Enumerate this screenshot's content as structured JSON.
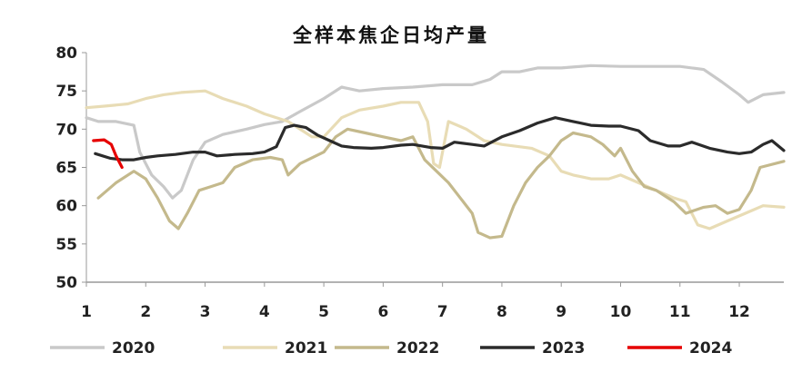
{
  "chart_data": {
    "type": "line",
    "title": "全样本焦企日均产量",
    "xlabel": "",
    "ylabel": "",
    "ylim": [
      50,
      80
    ],
    "xlim": [
      1,
      12.75
    ],
    "yticks": [
      "50",
      "55",
      "60",
      "65",
      "70",
      "75",
      "80"
    ],
    "xticks": [
      "1",
      "2",
      "3",
      "4",
      "5",
      "6",
      "7",
      "8",
      "9",
      "10",
      "11",
      "12"
    ],
    "grid": false,
    "legend_position": "bottom",
    "series": [
      {
        "name": "2020",
        "color": "#c9c9c9",
        "points": [
          [
            1.0,
            71.5
          ],
          [
            1.2,
            71.0
          ],
          [
            1.5,
            71.0
          ],
          [
            1.8,
            70.5
          ],
          [
            1.9,
            67.0
          ],
          [
            2.1,
            64.0
          ],
          [
            2.3,
            62.5
          ],
          [
            2.45,
            61.0
          ],
          [
            2.6,
            62.0
          ],
          [
            2.8,
            66.0
          ],
          [
            3.0,
            68.3
          ],
          [
            3.3,
            69.3
          ],
          [
            3.7,
            70.0
          ],
          [
            4.0,
            70.6
          ],
          [
            4.3,
            71.0
          ],
          [
            4.6,
            72.3
          ],
          [
            5.0,
            74.0
          ],
          [
            5.3,
            75.5
          ],
          [
            5.6,
            75.0
          ],
          [
            6.0,
            75.3
          ],
          [
            6.5,
            75.5
          ],
          [
            7.0,
            75.8
          ],
          [
            7.5,
            75.8
          ],
          [
            7.8,
            76.5
          ],
          [
            8.0,
            77.5
          ],
          [
            8.3,
            77.5
          ],
          [
            8.6,
            78.0
          ],
          [
            9.0,
            78.0
          ],
          [
            9.5,
            78.3
          ],
          [
            10.0,
            78.2
          ],
          [
            10.5,
            78.2
          ],
          [
            11.0,
            78.2
          ],
          [
            11.4,
            77.8
          ],
          [
            11.7,
            76.2
          ],
          [
            12.0,
            74.5
          ],
          [
            12.15,
            73.5
          ],
          [
            12.4,
            74.5
          ],
          [
            12.75,
            74.8
          ]
        ]
      },
      {
        "name": "2021",
        "color": "#e8dcb5",
        "points": [
          [
            1.0,
            72.8
          ],
          [
            1.3,
            73.0
          ],
          [
            1.7,
            73.3
          ],
          [
            2.0,
            74.0
          ],
          [
            2.3,
            74.5
          ],
          [
            2.6,
            74.8
          ],
          [
            3.0,
            75.0
          ],
          [
            3.3,
            74.0
          ],
          [
            3.7,
            73.0
          ],
          [
            4.0,
            72.0
          ],
          [
            4.4,
            71.0
          ],
          [
            4.8,
            69.0
          ],
          [
            5.0,
            69.0
          ],
          [
            5.3,
            71.5
          ],
          [
            5.6,
            72.5
          ],
          [
            6.0,
            73.0
          ],
          [
            6.3,
            73.5
          ],
          [
            6.6,
            73.5
          ],
          [
            6.75,
            71.0
          ],
          [
            6.85,
            65.5
          ],
          [
            6.95,
            65.0
          ],
          [
            7.1,
            71.0
          ],
          [
            7.4,
            70.0
          ],
          [
            7.7,
            68.5
          ],
          [
            8.0,
            68.0
          ],
          [
            8.5,
            67.5
          ],
          [
            8.8,
            66.5
          ],
          [
            9.0,
            64.5
          ],
          [
            9.2,
            64.0
          ],
          [
            9.5,
            63.5
          ],
          [
            9.8,
            63.5
          ],
          [
            10.0,
            64.0
          ],
          [
            10.3,
            63.0
          ],
          [
            10.6,
            62.0
          ],
          [
            10.9,
            61.0
          ],
          [
            11.1,
            60.5
          ],
          [
            11.3,
            57.5
          ],
          [
            11.5,
            57.0
          ],
          [
            11.8,
            58.0
          ],
          [
            12.1,
            59.0
          ],
          [
            12.4,
            60.0
          ],
          [
            12.75,
            59.8
          ]
        ]
      },
      {
        "name": "2022",
        "color": "#c4b98c",
        "points": [
          [
            1.2,
            61.0
          ],
          [
            1.5,
            63.0
          ],
          [
            1.8,
            64.5
          ],
          [
            2.0,
            63.5
          ],
          [
            2.2,
            61.0
          ],
          [
            2.4,
            58.0
          ],
          [
            2.55,
            57.0
          ],
          [
            2.7,
            59.0
          ],
          [
            2.9,
            62.0
          ],
          [
            3.1,
            62.5
          ],
          [
            3.3,
            63.0
          ],
          [
            3.5,
            65.0
          ],
          [
            3.8,
            66.0
          ],
          [
            4.1,
            66.3
          ],
          [
            4.3,
            66.0
          ],
          [
            4.4,
            64.0
          ],
          [
            4.6,
            65.5
          ],
          [
            5.0,
            67.0
          ],
          [
            5.2,
            69.0
          ],
          [
            5.4,
            70.0
          ],
          [
            5.7,
            69.5
          ],
          [
            6.0,
            69.0
          ],
          [
            6.3,
            68.5
          ],
          [
            6.5,
            69.0
          ],
          [
            6.6,
            67.5
          ],
          [
            6.7,
            66.0
          ],
          [
            6.9,
            64.5
          ],
          [
            7.1,
            63.0
          ],
          [
            7.3,
            61.0
          ],
          [
            7.5,
            59.0
          ],
          [
            7.6,
            56.5
          ],
          [
            7.8,
            55.8
          ],
          [
            8.0,
            56.0
          ],
          [
            8.2,
            60.0
          ],
          [
            8.4,
            63.0
          ],
          [
            8.6,
            65.0
          ],
          [
            8.8,
            66.5
          ],
          [
            9.0,
            68.5
          ],
          [
            9.2,
            69.5
          ],
          [
            9.5,
            69.0
          ],
          [
            9.7,
            68.0
          ],
          [
            9.9,
            66.5
          ],
          [
            10.0,
            67.5
          ],
          [
            10.2,
            64.5
          ],
          [
            10.4,
            62.5
          ],
          [
            10.6,
            62.0
          ],
          [
            10.9,
            60.5
          ],
          [
            11.1,
            59.0
          ],
          [
            11.4,
            59.8
          ],
          [
            11.6,
            60.0
          ],
          [
            11.8,
            59.0
          ],
          [
            12.0,
            59.5
          ],
          [
            12.2,
            62.0
          ],
          [
            12.35,
            65.0
          ],
          [
            12.75,
            65.8
          ]
        ]
      },
      {
        "name": "2023",
        "color": "#2b2b2b",
        "points": [
          [
            1.15,
            66.8
          ],
          [
            1.4,
            66.2
          ],
          [
            1.6,
            66.0
          ],
          [
            1.8,
            66.0
          ],
          [
            2.0,
            66.3
          ],
          [
            2.2,
            66.5
          ],
          [
            2.5,
            66.7
          ],
          [
            2.8,
            67.0
          ],
          [
            3.0,
            67.0
          ],
          [
            3.2,
            66.5
          ],
          [
            3.5,
            66.7
          ],
          [
            3.8,
            66.8
          ],
          [
            4.0,
            67.0
          ],
          [
            4.2,
            67.7
          ],
          [
            4.35,
            70.2
          ],
          [
            4.5,
            70.5
          ],
          [
            4.7,
            70.2
          ],
          [
            4.9,
            69.2
          ],
          [
            5.1,
            68.5
          ],
          [
            5.3,
            67.8
          ],
          [
            5.5,
            67.6
          ],
          [
            5.8,
            67.5
          ],
          [
            6.0,
            67.6
          ],
          [
            6.3,
            67.9
          ],
          [
            6.5,
            68.0
          ],
          [
            6.8,
            67.6
          ],
          [
            7.0,
            67.5
          ],
          [
            7.2,
            68.3
          ],
          [
            7.5,
            68.0
          ],
          [
            7.7,
            67.8
          ],
          [
            8.0,
            69.0
          ],
          [
            8.3,
            69.8
          ],
          [
            8.6,
            70.8
          ],
          [
            8.9,
            71.5
          ],
          [
            9.2,
            71.0
          ],
          [
            9.5,
            70.5
          ],
          [
            9.8,
            70.4
          ],
          [
            10.0,
            70.4
          ],
          [
            10.3,
            69.8
          ],
          [
            10.5,
            68.5
          ],
          [
            10.8,
            67.8
          ],
          [
            11.0,
            67.8
          ],
          [
            11.2,
            68.3
          ],
          [
            11.5,
            67.5
          ],
          [
            11.8,
            67.0
          ],
          [
            12.0,
            66.8
          ],
          [
            12.2,
            67.0
          ],
          [
            12.4,
            68.0
          ],
          [
            12.55,
            68.5
          ],
          [
            12.75,
            67.2
          ]
        ]
      },
      {
        "name": "2024",
        "color": "#e60000",
        "points": [
          [
            1.12,
            68.5
          ],
          [
            1.3,
            68.6
          ],
          [
            1.42,
            68.0
          ],
          [
            1.5,
            66.5
          ],
          [
            1.6,
            65.0
          ]
        ]
      }
    ]
  }
}
